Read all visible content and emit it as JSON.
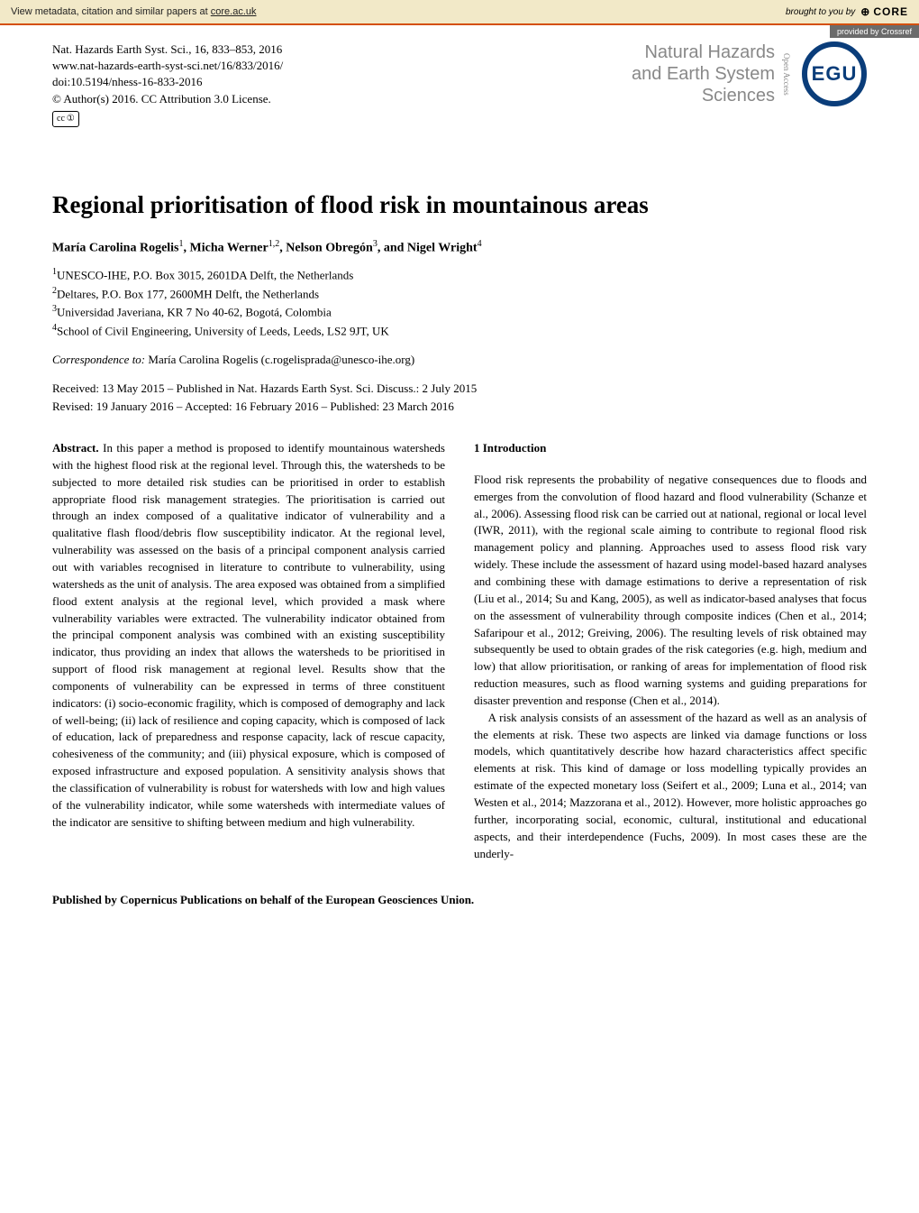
{
  "topbar": {
    "metadata_text": "View metadata, citation and similar papers at ",
    "metadata_link": "core.ac.uk",
    "brought_text": "brought to you by ",
    "core_label": "CORE",
    "provided_text": "provided by Crossref"
  },
  "citation": {
    "line1": "Nat. Hazards Earth Syst. Sci., 16, 833–853, 2016",
    "line2": "www.nat-hazards-earth-syst-sci.net/16/833/2016/",
    "line3": "doi:10.5194/nhess-16-833-2016",
    "line4": "© Author(s) 2016. CC Attribution 3.0 License."
  },
  "journal": {
    "name_line1": "Natural Hazards",
    "name_line2": "and Earth System",
    "name_line3": "Sciences",
    "open_access": "Open Access",
    "egu": "EGU"
  },
  "cc_badge": {
    "cc": "cc",
    "by": "①"
  },
  "title": "Regional prioritisation of flood risk in mountainous areas",
  "authors_html": {
    "a1": "María Carolina Rogelis",
    "s1": "1",
    "a2": ", Micha Werner",
    "s2": "1,2",
    "a3": ", Nelson Obregón",
    "s3": "3",
    "a4": ", and Nigel Wright",
    "s4": "4"
  },
  "affiliations": {
    "1": "UNESCO-IHE, P.O. Box 3015, 2601DA Delft, the Netherlands",
    "2": "Deltares, P.O. Box 177, 2600MH Delft, the Netherlands",
    "3": "Universidad Javeriana, KR 7 No 40-62, Bogotá, Colombia",
    "4": "School of Civil Engineering, University of Leeds, Leeds, LS2 9JT, UK"
  },
  "correspondence": {
    "label": "Correspondence to: ",
    "text": "María Carolina Rogelis (c.rogelisprada@unesco-ihe.org)"
  },
  "dates": {
    "line1": "Received: 13 May 2015 – Published in Nat. Hazards Earth Syst. Sci. Discuss.: 2 July 2015",
    "line2": "Revised: 19 January 2016 – Accepted: 16 February 2016 – Published: 23 March 2016"
  },
  "abstract": {
    "label": "Abstract.",
    "text": " In this paper a method is proposed to identify mountainous watersheds with the highest flood risk at the regional level. Through this, the watersheds to be subjected to more detailed risk studies can be prioritised in order to establish appropriate flood risk management strategies. The prioritisation is carried out through an index composed of a qualitative indicator of vulnerability and a qualitative flash flood/debris flow susceptibility indicator. At the regional level, vulnerability was assessed on the basis of a principal component analysis carried out with variables recognised in literature to contribute to vulnerability, using watersheds as the unit of analysis. The area exposed was obtained from a simplified flood extent analysis at the regional level, which provided a mask where vulnerability variables were extracted. The vulnerability indicator obtained from the principal component analysis was combined with an existing susceptibility indicator, thus providing an index that allows the watersheds to be prioritised in support of flood risk management at regional level. Results show that the components of vulnerability can be expressed in terms of three constituent indicators: (i) socio-economic fragility, which is composed of demography and lack of well-being; (ii) lack of resilience and coping capacity, which is composed of lack of education, lack of preparedness and response capacity, lack of rescue capacity, cohesiveness of the community; and (iii) physical exposure, which is composed of exposed infrastructure and exposed population. A sensitivity analysis shows that the classification of vulnerability is robust for watersheds with low and high values of the vulnerability indicator, while some watersheds with intermediate values of the indicator are sensitive to shifting between medium and high vulnerability."
  },
  "intro": {
    "heading": "1   Introduction",
    "p1": "Flood risk represents the probability of negative consequences due to floods and emerges from the convolution of flood hazard and flood vulnerability (Schanze et al., 2006). Assessing flood risk can be carried out at national, regional or local level (IWR, 2011), with the regional scale aiming to contribute to regional flood risk management policy and planning. Approaches used to assess flood risk vary widely. These include the assessment of hazard using model-based hazard analyses and combining these with damage estimations to derive a representation of risk (Liu et al., 2014; Su and Kang, 2005), as well as indicator-based analyses that focus on the assessment of vulnerability through composite indices (Chen et al., 2014; Safaripour et al., 2012; Greiving, 2006). The resulting levels of risk obtained may subsequently be used to obtain grades of the risk categories (e.g. high, medium and low) that allow prioritisation, or ranking of areas for implementation of flood risk reduction measures, such as flood warning systems and guiding preparations for disaster prevention and response (Chen et al., 2014).",
    "p2": "A risk analysis consists of an assessment of the hazard as well as an analysis of the elements at risk. These two aspects are linked via damage functions or loss models, which quantitatively describe how hazard characteristics affect specific elements at risk. This kind of damage or loss modelling typically provides an estimate of the expected monetary loss (Seifert et al., 2009; Luna et al., 2014; van Westen et al., 2014; Mazzorana et al., 2012). However, more holistic approaches go further, incorporating social, economic, cultural, institutional and educational aspects, and their interdependence (Fuchs, 2009). In most cases these are the underly-"
  },
  "footer": "Published by Copernicus Publications on behalf of the European Geosciences Union.",
  "colors": {
    "topbar_bg": "#f2e9c8",
    "accent": "#d4500a",
    "egu_blue": "#0a3d7a",
    "provided_bg": "#6b6b6b"
  }
}
